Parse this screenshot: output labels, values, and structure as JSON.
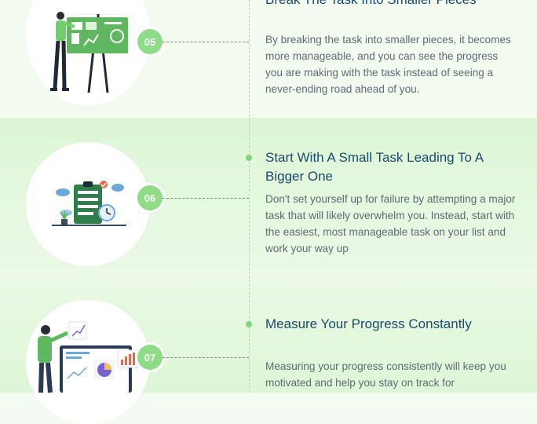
{
  "steps": [
    {
      "number": "05",
      "title": "Break The Task Into Smaller Pieces",
      "description": "By breaking the task into smaller pieces, it becomes more manageable, and you can see the progress you are making with the task instead of seeing a never-ending road ahead of you."
    },
    {
      "number": "06",
      "title": "Start With A Small Task Leading To A Bigger One",
      "description": "Don't set yourself up for failure by attempting a major task that will likely overwhelm you. Instead, start with the easiest, most manageable task on your list and work your way up"
    },
    {
      "number": "07",
      "title": "Measure Your Progress Constantly",
      "description": "Measuring your progress consistently will keep you motivated and help you stay on track for"
    }
  ],
  "colors": {
    "accent_green": "#8fdc88",
    "title_blue": "#1c4a6b",
    "body_gray": "#606a72"
  },
  "icons": [
    "presentation-board-illustration",
    "clipboard-checklist-illustration",
    "progress-dashboard-illustration"
  ]
}
